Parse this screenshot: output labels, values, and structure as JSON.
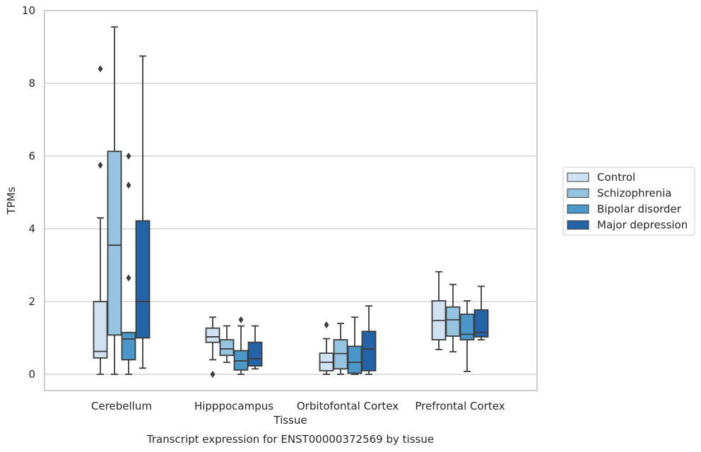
{
  "chart_data": {
    "type": "box",
    "xlabel": "Tissue",
    "ylabel": "TPMs",
    "caption": "Transcript expression for ENST00000372569 by tissue",
    "ylim": [
      -0.45,
      10
    ],
    "yticks": [
      0,
      2,
      4,
      6,
      8,
      10
    ],
    "grid": "horizontal",
    "legend_position": "right",
    "categories": [
      "Cerebellum",
      "Hipppocampus",
      "Orbitofontal Cortex",
      "Prefrontal Cortex"
    ],
    "series": [
      {
        "name": "Control",
        "color": "#d0e1f2",
        "boxes": [
          {
            "whislo": 0.0,
            "q1": 0.45,
            "med": 0.63,
            "q3": 2.0,
            "whishi": 4.3,
            "fliers": [
              5.75,
              8.4
            ]
          },
          {
            "whislo": 0.4,
            "q1": 0.88,
            "med": 1.03,
            "q3": 1.27,
            "whishi": 1.57,
            "fliers": [
              0.0
            ]
          },
          {
            "whislo": 0.0,
            "q1": 0.1,
            "med": 0.33,
            "q3": 0.58,
            "whishi": 0.98,
            "fliers": [
              1.36
            ]
          },
          {
            "whislo": 0.68,
            "q1": 0.95,
            "med": 1.48,
            "q3": 2.02,
            "whishi": 2.82,
            "fliers": []
          }
        ]
      },
      {
        "name": "Schizophrenia",
        "color": "#94c4df",
        "boxes": [
          {
            "whislo": 0.0,
            "q1": 1.08,
            "med": 3.55,
            "q3": 6.13,
            "whishi": 9.55,
            "fliers": []
          },
          {
            "whislo": 0.33,
            "q1": 0.52,
            "med": 0.7,
            "q3": 0.95,
            "whishi": 1.33,
            "fliers": []
          },
          {
            "whislo": 0.0,
            "q1": 0.15,
            "med": 0.57,
            "q3": 0.95,
            "whishi": 1.4,
            "fliers": []
          },
          {
            "whislo": 0.62,
            "q1": 1.05,
            "med": 1.5,
            "q3": 1.85,
            "whishi": 2.47,
            "fliers": []
          }
        ]
      },
      {
        "name": "Bipolar disorder",
        "color": "#4a98c9",
        "boxes": [
          {
            "whislo": 0.0,
            "q1": 0.4,
            "med": 0.97,
            "q3": 1.15,
            "whishi": 1.15,
            "fliers": [
              2.65,
              5.2,
              6.0
            ]
          },
          {
            "whislo": 0.0,
            "q1": 0.12,
            "med": 0.37,
            "q3": 0.65,
            "whishi": 1.33,
            "fliers": [
              1.5
            ]
          },
          {
            "whislo": 0.0,
            "q1": 0.03,
            "med": 0.33,
            "q3": 0.77,
            "whishi": 1.57,
            "fliers": []
          },
          {
            "whislo": 0.08,
            "q1": 0.95,
            "med": 1.1,
            "q3": 1.65,
            "whishi": 2.02,
            "fliers": []
          }
        ]
      },
      {
        "name": "Major depression",
        "color": "#2363a8",
        "boxes": [
          {
            "whislo": 0.17,
            "q1": 1.0,
            "med": 2.0,
            "q3": 4.22,
            "whishi": 8.75,
            "fliers": []
          },
          {
            "whislo": 0.15,
            "q1": 0.23,
            "med": 0.43,
            "q3": 0.88,
            "whishi": 1.33,
            "fliers": []
          },
          {
            "whislo": 0.0,
            "q1": 0.1,
            "med": 0.7,
            "q3": 1.18,
            "whishi": 1.88,
            "fliers": []
          },
          {
            "whislo": 0.95,
            "q1": 1.03,
            "med": 1.15,
            "q3": 1.77,
            "whishi": 2.42,
            "fliers": []
          }
        ]
      }
    ]
  }
}
